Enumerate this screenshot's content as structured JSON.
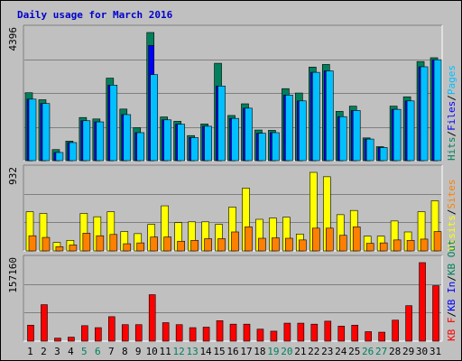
{
  "title": "Daily usage for March 2016",
  "colors": {
    "hits": "#00805c",
    "files": "#0000ff",
    "pages": "#00c0ff",
    "visits": "#ffff00",
    "sites": "#ff8000",
    "kbf": "#ff0000",
    "kbin": "#0000ff",
    "kbout": "#00805c",
    "weekend": "#00805c",
    "weekday": "#000000"
  },
  "chart_data": [
    {
      "type": "bar",
      "panel": "top",
      "ymax_label": "4396",
      "ylim": [
        0,
        4396
      ],
      "axis_legend": [
        {
          "text": "Hits",
          "color": "#00805c"
        },
        {
          "text": "/",
          "color": "#000000"
        },
        {
          "text": "Files",
          "color": "#0000ff"
        },
        {
          "text": "/",
          "color": "#000000"
        },
        {
          "text": "Pages",
          "color": "#00c0ff"
        }
      ],
      "categories": [
        "1",
        "2",
        "3",
        "4",
        "5",
        "6",
        "7",
        "8",
        "9",
        "10",
        "11",
        "12",
        "13",
        "14",
        "15",
        "16",
        "17",
        "18",
        "19",
        "20",
        "21",
        "22",
        "23",
        "24",
        "25",
        "26",
        "27",
        "28",
        "29",
        "30",
        "31"
      ],
      "weekend_days": [
        "5",
        "6",
        "12",
        "13",
        "19",
        "20",
        "26",
        "27"
      ],
      "series": [
        {
          "name": "Hits",
          "values": [
            2330,
            2090,
            380,
            670,
            1480,
            1430,
            2830,
            1770,
            1130,
            4396,
            1500,
            1350,
            860,
            1260,
            3340,
            1550,
            1950,
            1050,
            1040,
            2470,
            2320,
            3210,
            3300,
            1690,
            1870,
            780,
            480,
            1870,
            2190,
            3400,
            3530
          ]
        },
        {
          "name": "Files",
          "values": [
            2110,
            1960,
            280,
            620,
            1370,
            1330,
            2590,
            1580,
            960,
            3950,
            1400,
            1250,
            790,
            1180,
            2560,
            1450,
            1800,
            940,
            960,
            2250,
            2050,
            3030,
            3080,
            1510,
            1720,
            740,
            450,
            1760,
            2050,
            3220,
            3460
          ]
        },
        {
          "name": "Pages",
          "values": [
            2110,
            1960,
            280,
            620,
            1370,
            1330,
            2590,
            1580,
            960,
            2950,
            1400,
            1250,
            790,
            1180,
            2560,
            1450,
            1800,
            940,
            960,
            2250,
            2050,
            3030,
            3080,
            1510,
            1720,
            740,
            450,
            1760,
            2050,
            3220,
            3460
          ]
        }
      ]
    },
    {
      "type": "bar",
      "panel": "middle",
      "ymax_label": "932",
      "ylim": [
        0,
        932
      ],
      "axis_legend": [
        {
          "text": "Visits",
          "color": "#ffff00"
        },
        {
          "text": "/",
          "color": "#000000"
        },
        {
          "text": "Sites",
          "color": "#ff8000"
        }
      ],
      "categories": [
        "1",
        "2",
        "3",
        "4",
        "5",
        "6",
        "7",
        "8",
        "9",
        "10",
        "11",
        "12",
        "13",
        "14",
        "15",
        "16",
        "17",
        "18",
        "19",
        "20",
        "21",
        "22",
        "23",
        "24",
        "25",
        "26",
        "27",
        "28",
        "29",
        "30",
        "31"
      ],
      "series": [
        {
          "name": "Visits",
          "values": [
            465,
            445,
            100,
            125,
            445,
            405,
            465,
            230,
            205,
            315,
            535,
            335,
            345,
            345,
            315,
            520,
            745,
            375,
            390,
            400,
            200,
            932,
            880,
            430,
            480,
            175,
            175,
            355,
            225,
            465,
            595
          ]
        },
        {
          "name": "Sites",
          "values": [
            180,
            160,
            50,
            70,
            210,
            180,
            195,
            85,
            95,
            165,
            165,
            115,
            125,
            145,
            145,
            225,
            285,
            150,
            155,
            150,
            130,
            270,
            270,
            185,
            285,
            90,
            95,
            130,
            125,
            140,
            230
          ]
        }
      ]
    },
    {
      "type": "bar",
      "panel": "bottom",
      "ymax_label": "157160",
      "ylim": [
        0,
        157160
      ],
      "axis_legend": [
        {
          "text": "KB F",
          "color": "#ff0000"
        },
        {
          "text": "/",
          "color": "#000000"
        },
        {
          "text": "KB In",
          "color": "#0000ff"
        },
        {
          "text": "/",
          "color": "#000000"
        },
        {
          "text": "KB Out",
          "color": "#00805c"
        }
      ],
      "categories": [
        "1",
        "2",
        "3",
        "4",
        "5",
        "6",
        "7",
        "8",
        "9",
        "10",
        "11",
        "12",
        "13",
        "14",
        "15",
        "16",
        "17",
        "18",
        "19",
        "20",
        "21",
        "22",
        "23",
        "24",
        "25",
        "26",
        "27",
        "28",
        "29",
        "30",
        "31"
      ],
      "series": [
        {
          "name": "KB F",
          "values": [
            32000,
            73000,
            6000,
            8000,
            31000,
            27000,
            49000,
            33000,
            33000,
            93000,
            37000,
            33000,
            27000,
            28000,
            41000,
            34000,
            34000,
            24000,
            20000,
            36000,
            36000,
            34000,
            40000,
            30000,
            32000,
            19000,
            18000,
            42000,
            71000,
            157160,
            111000
          ]
        }
      ]
    }
  ]
}
